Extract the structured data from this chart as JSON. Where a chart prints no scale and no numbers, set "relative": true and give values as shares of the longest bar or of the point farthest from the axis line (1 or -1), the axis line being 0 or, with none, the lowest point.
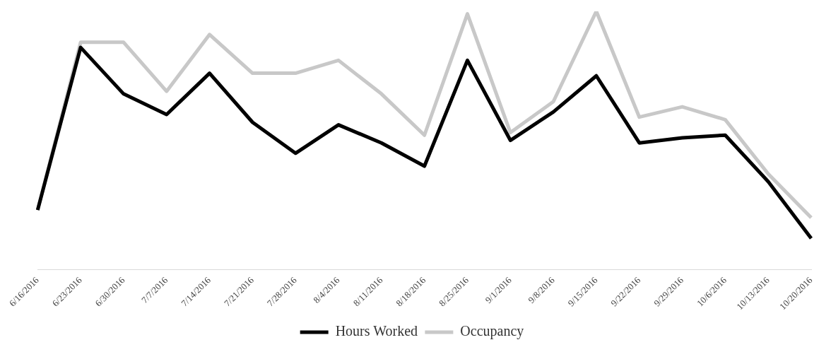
{
  "chart_data": {
    "type": "line",
    "relative": true,
    "categories": [
      "6/16/2016",
      "6/23/2016",
      "6/30/2016",
      "7/7/2016",
      "7/14/2016",
      "7/21/2016",
      "7/28/2016",
      "8/4/2016",
      "8/11/2016",
      "8/18/2016",
      "8/25/2016",
      "9/1/2016",
      "9/8/2016",
      "9/15/2016",
      "9/22/2016",
      "9/29/2016",
      "10/6/2016",
      "10/13/2016",
      "10/20/2016"
    ],
    "series": [
      {
        "name": "Hours Worked",
        "color": "#000000",
        "values": [
          0.23,
          0.86,
          0.68,
          0.6,
          0.76,
          0.57,
          0.45,
          0.56,
          0.49,
          0.4,
          0.81,
          0.5,
          0.61,
          0.75,
          0.49,
          0.51,
          0.52,
          0.34,
          0.12
        ]
      },
      {
        "name": "Occupancy",
        "color": "#c8c8c8",
        "values": [
          0.23,
          0.88,
          0.88,
          0.69,
          0.91,
          0.76,
          0.76,
          0.81,
          0.68,
          0.52,
          0.99,
          0.53,
          0.65,
          1.0,
          0.59,
          0.63,
          0.58,
          0.37,
          0.2
        ]
      }
    ],
    "grid": false,
    "legend": "bottom",
    "marker": "none",
    "line_style": "solid"
  }
}
